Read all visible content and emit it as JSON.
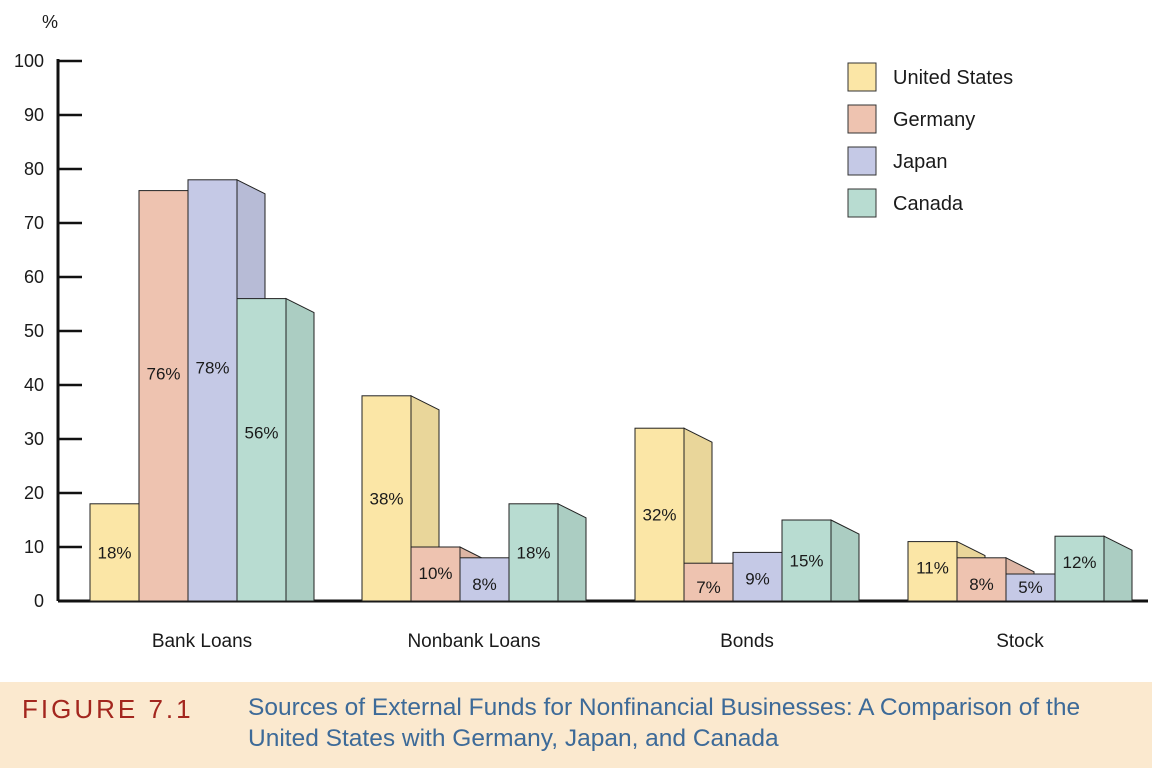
{
  "chart_data": {
    "type": "bar",
    "title": "",
    "ylabel": "%",
    "ylim": [
      0,
      100
    ],
    "yticks": [
      0,
      10,
      20,
      30,
      40,
      50,
      60,
      70,
      80,
      90,
      100
    ],
    "categories": [
      "Bank Loans",
      "Nonbank Loans",
      "Bonds",
      "Stock"
    ],
    "series": [
      {
        "name": "United States",
        "color": "#fbe6a6",
        "values": [
          18,
          38,
          32,
          11
        ],
        "labels": [
          "18%",
          "38%",
          "32%",
          "11%"
        ]
      },
      {
        "name": "Germany",
        "color": "#eec3b0",
        "values": [
          76,
          10,
          7,
          8
        ],
        "labels": [
          "76%",
          "10%",
          "7%",
          "8%"
        ]
      },
      {
        "name": "Japan",
        "color": "#c5c9e6",
        "values": [
          78,
          8,
          9,
          5
        ],
        "labels": [
          "78%",
          "8%",
          "9%",
          "5%"
        ]
      },
      {
        "name": "Canada",
        "color": "#b8dcd1",
        "values": [
          56,
          18,
          15,
          12
        ],
        "labels": [
          "56%",
          "18%",
          "15%",
          "12%"
        ]
      }
    ],
    "legend_position": "top-right",
    "grid": false
  },
  "caption": {
    "label": "FIGURE 7.1",
    "text": "Sources of External Funds for Nonfinancial Businesses: A Comparison of the United States with Germany, Japan, and Canada"
  }
}
